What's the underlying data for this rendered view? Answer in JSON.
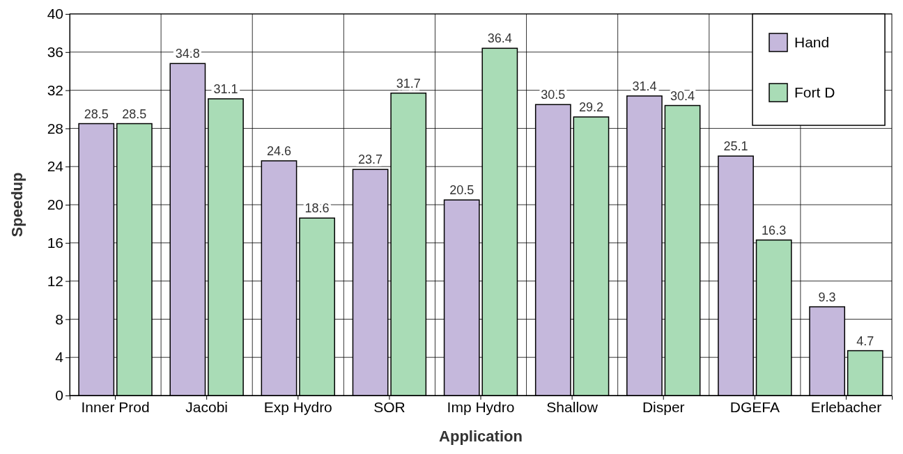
{
  "chart_data": {
    "type": "bar",
    "xlabel": "Application",
    "ylabel": "Speedup",
    "categories": [
      "Inner Prod",
      "Jacobi",
      "Exp Hydro",
      "SOR",
      "Imp Hydro",
      "Shallow",
      "Disper",
      "DGEFA",
      "Erlebacher"
    ],
    "series": [
      {
        "name": "Hand",
        "color": "#c5b8dc",
        "values": [
          28.5,
          34.8,
          24.6,
          23.7,
          20.5,
          30.5,
          31.4,
          25.1,
          9.3
        ]
      },
      {
        "name": "Fort D",
        "color": "#a9dcb6",
        "values": [
          28.5,
          31.1,
          18.6,
          31.7,
          36.4,
          29.2,
          30.4,
          16.3,
          4.7
        ]
      }
    ],
    "ylim": [
      0,
      40
    ],
    "yticks": [
      0,
      4,
      8,
      12,
      16,
      20,
      24,
      28,
      32,
      36,
      40
    ],
    "grid": true,
    "legend": "top right",
    "data_labels": true
  }
}
